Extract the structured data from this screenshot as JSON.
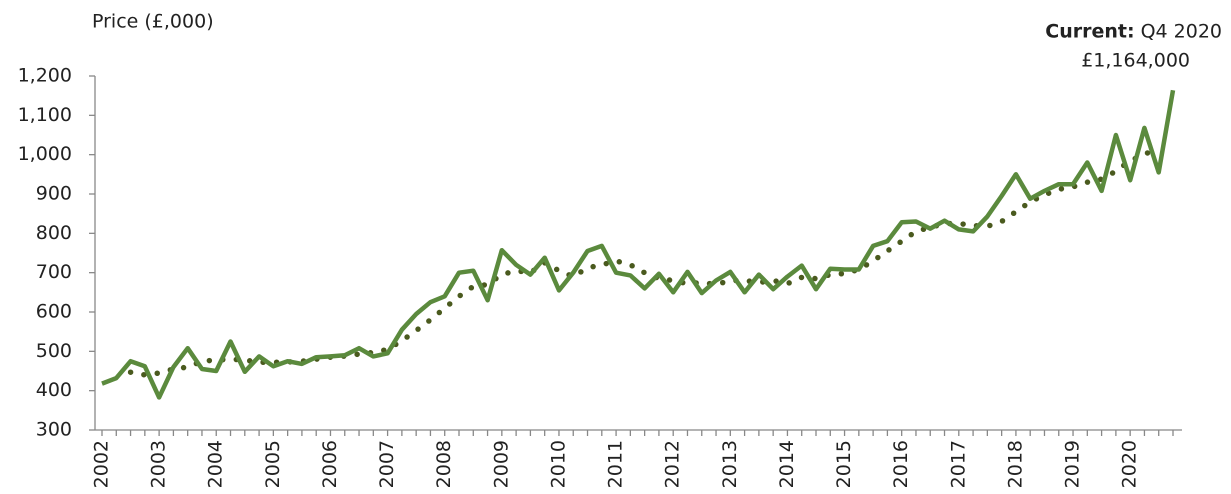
{
  "chart_data": {
    "type": "line",
    "y_axis_label": "Price (£,000)",
    "annotation": {
      "label": "Current:",
      "period": "Q4 2020",
      "value_label": "£1,164,000"
    },
    "categories": [
      "2002",
      null,
      null,
      null,
      "2003",
      null,
      null,
      null,
      "2004",
      null,
      null,
      null,
      "2005",
      null,
      null,
      null,
      "2006",
      null,
      null,
      null,
      "2007",
      null,
      null,
      null,
      "2008",
      null,
      null,
      null,
      "2009",
      null,
      null,
      null,
      "2010",
      null,
      null,
      null,
      "2011",
      null,
      null,
      null,
      "2012",
      null,
      null,
      null,
      "2013",
      null,
      null,
      null,
      "2014",
      null,
      null,
      null,
      "2015",
      null,
      null,
      null,
      "2016",
      null,
      null,
      null,
      "2017",
      null,
      null,
      null,
      "2018",
      null,
      null,
      null,
      "2019",
      null,
      null,
      null,
      "2020",
      null,
      null,
      null
    ],
    "series": [
      {
        "color": "#5b8a3d",
        "style": "solid",
        "values": [
          418,
          432,
          475,
          462,
          383,
          460,
          508,
          455,
          450,
          525,
          448,
          487,
          462,
          475,
          468,
          485,
          487,
          490,
          508,
          487,
          495,
          555,
          595,
          625,
          640,
          700,
          705,
          630,
          757,
          720,
          695,
          738,
          655,
          700,
          755,
          768,
          700,
          693,
          660,
          697,
          650,
          702,
          648,
          680,
          702,
          650,
          695,
          658,
          690,
          718,
          658,
          710,
          708,
          708,
          768,
          780,
          828,
          830,
          812,
          832,
          810,
          805,
          843,
          895,
          950,
          888,
          908,
          925,
          925,
          980,
          908,
          1050,
          935,
          1068,
          955,
          1164
        ]
      },
      {
        "color": "#4a5a1e",
        "style": "dotted",
        "values": [
          null,
          null,
          447,
          440,
          445,
          455,
          460,
          475,
          478,
          480,
          478,
          472,
          472,
          473,
          475,
          480,
          485,
          488,
          493,
          497,
          505,
          527,
          553,
          580,
          610,
          640,
          665,
          670,
          695,
          705,
          700,
          725,
          705,
          690,
          712,
          720,
          730,
          720,
          700,
          685,
          680,
          672,
          675,
          670,
          680,
          680,
          675,
          680,
          672,
          688,
          685,
          695,
          698,
          708,
          730,
          755,
          780,
          805,
          815,
          825,
          825,
          820,
          818,
          830,
          855,
          880,
          898,
          912,
          918,
          930,
          938,
          958,
          985,
          1000,
          1020,
          null
        ]
      }
    ],
    "ylim": [
      300,
      1200
    ],
    "yticks": [
      300,
      400,
      500,
      600,
      700,
      800,
      900,
      {
        "value": 1000,
        "label": "1,000"
      },
      {
        "value": 1100,
        "label": "1,100"
      },
      {
        "value": 1200,
        "label": "1,200"
      }
    ]
  }
}
